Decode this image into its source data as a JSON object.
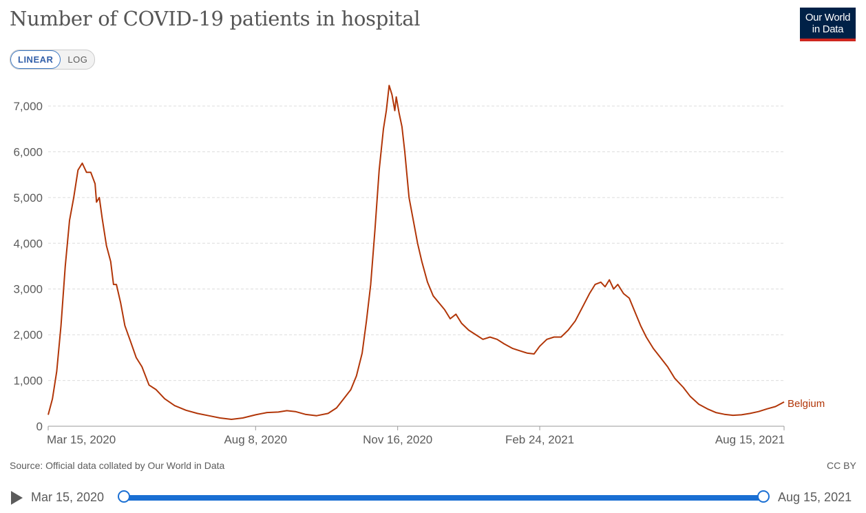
{
  "title": "Number of COVID-19 patients in hospital",
  "logo": {
    "line1": "Our World",
    "line2": "in Data"
  },
  "scale_toggle": {
    "linear_label": "LINEAR",
    "log_label": "LOG",
    "selected": "LINEAR"
  },
  "source_text": "Source: Official data collated by Our World in Data",
  "license_text": "CC BY",
  "timeline": {
    "start_label": "Mar 15, 2020",
    "end_label": "Aug 15, 2021"
  },
  "colors": {
    "series": "#b13507",
    "accent": "#1a6fd3",
    "logo_bg": "#002147",
    "logo_bar": "#ce261e"
  },
  "chart_data": {
    "type": "line",
    "title": "Number of COVID-19 patients in hospital",
    "xlabel": "",
    "ylabel": "",
    "x_range": [
      "2020-03-15",
      "2021-08-15"
    ],
    "ylim": [
      0,
      7000
    ],
    "y_ticks": [
      0,
      1000,
      2000,
      3000,
      4000,
      5000,
      6000,
      7000
    ],
    "y_tick_labels": [
      "0",
      "1,000",
      "2,000",
      "3,000",
      "4,000",
      "5,000",
      "6,000",
      "7,000"
    ],
    "x_ticks": [
      "2020-03-15",
      "2020-08-08",
      "2020-11-16",
      "2021-02-24",
      "2021-08-15"
    ],
    "x_tick_labels": [
      "Mar 15, 2020",
      "Aug 8, 2020",
      "Nov 16, 2020",
      "Feb 24, 2021",
      "Aug 15, 2021"
    ],
    "grid": "horizontal-dashed",
    "series": [
      {
        "name": "Belgium",
        "points": [
          [
            "2020-03-15",
            250
          ],
          [
            "2020-03-18",
            600
          ],
          [
            "2020-03-21",
            1200
          ],
          [
            "2020-03-24",
            2200
          ],
          [
            "2020-03-27",
            3500
          ],
          [
            "2020-03-30",
            4500
          ],
          [
            "2020-04-02",
            5000
          ],
          [
            "2020-04-05",
            5600
          ],
          [
            "2020-04-08",
            5750
          ],
          [
            "2020-04-11",
            5550
          ],
          [
            "2020-04-14",
            5550
          ],
          [
            "2020-04-17",
            5300
          ],
          [
            "2020-04-18",
            4900
          ],
          [
            "2020-04-20",
            5000
          ],
          [
            "2020-04-22",
            4550
          ],
          [
            "2020-04-25",
            3950
          ],
          [
            "2020-04-28",
            3600
          ],
          [
            "2020-04-30",
            3100
          ],
          [
            "2020-05-02",
            3100
          ],
          [
            "2020-05-05",
            2700
          ],
          [
            "2020-05-08",
            2200
          ],
          [
            "2020-05-12",
            1850
          ],
          [
            "2020-05-16",
            1500
          ],
          [
            "2020-05-20",
            1300
          ],
          [
            "2020-05-25",
            900
          ],
          [
            "2020-05-30",
            800
          ],
          [
            "2020-06-05",
            600
          ],
          [
            "2020-06-12",
            450
          ],
          [
            "2020-06-20",
            350
          ],
          [
            "2020-06-28",
            280
          ],
          [
            "2020-07-06",
            230
          ],
          [
            "2020-07-14",
            180
          ],
          [
            "2020-07-22",
            150
          ],
          [
            "2020-07-30",
            180
          ],
          [
            "2020-08-08",
            250
          ],
          [
            "2020-08-16",
            300
          ],
          [
            "2020-08-24",
            310
          ],
          [
            "2020-08-30",
            340
          ],
          [
            "2020-09-05",
            320
          ],
          [
            "2020-09-12",
            260
          ],
          [
            "2020-09-20",
            230
          ],
          [
            "2020-09-28",
            280
          ],
          [
            "2020-10-04",
            400
          ],
          [
            "2020-10-09",
            600
          ],
          [
            "2020-10-14",
            800
          ],
          [
            "2020-10-18",
            1100
          ],
          [
            "2020-10-22",
            1600
          ],
          [
            "2020-10-25",
            2300
          ],
          [
            "2020-10-28",
            3100
          ],
          [
            "2020-10-31",
            4300
          ],
          [
            "2020-11-03",
            5600
          ],
          [
            "2020-11-06",
            6500
          ],
          [
            "2020-11-08",
            6900
          ],
          [
            "2020-11-10",
            7450
          ],
          [
            "2020-11-12",
            7250
          ],
          [
            "2020-11-14",
            6900
          ],
          [
            "2020-11-15",
            7200
          ],
          [
            "2020-11-17",
            6850
          ],
          [
            "2020-11-19",
            6550
          ],
          [
            "2020-11-21",
            6000
          ],
          [
            "2020-11-24",
            5000
          ],
          [
            "2020-11-27",
            4500
          ],
          [
            "2020-11-30",
            4000
          ],
          [
            "2020-12-03",
            3600
          ],
          [
            "2020-12-07",
            3150
          ],
          [
            "2020-12-11",
            2850
          ],
          [
            "2020-12-15",
            2700
          ],
          [
            "2020-12-19",
            2550
          ],
          [
            "2020-12-23",
            2350
          ],
          [
            "2020-12-27",
            2450
          ],
          [
            "2020-12-31",
            2250
          ],
          [
            "2021-01-05",
            2100
          ],
          [
            "2021-01-10",
            2000
          ],
          [
            "2021-01-15",
            1900
          ],
          [
            "2021-01-20",
            1950
          ],
          [
            "2021-01-25",
            1900
          ],
          [
            "2021-01-30",
            1800
          ],
          [
            "2021-02-05",
            1700
          ],
          [
            "2021-02-10",
            1650
          ],
          [
            "2021-02-15",
            1600
          ],
          [
            "2021-02-20",
            1580
          ],
          [
            "2021-02-24",
            1750
          ],
          [
            "2021-03-01",
            1900
          ],
          [
            "2021-03-06",
            1950
          ],
          [
            "2021-03-11",
            1950
          ],
          [
            "2021-03-16",
            2100
          ],
          [
            "2021-03-21",
            2300
          ],
          [
            "2021-03-26",
            2600
          ],
          [
            "2021-03-31",
            2900
          ],
          [
            "2021-04-04",
            3100
          ],
          [
            "2021-04-08",
            3150
          ],
          [
            "2021-04-11",
            3050
          ],
          [
            "2021-04-14",
            3200
          ],
          [
            "2021-04-17",
            3000
          ],
          [
            "2021-04-20",
            3100
          ],
          [
            "2021-04-24",
            2900
          ],
          [
            "2021-04-28",
            2800
          ],
          [
            "2021-05-02",
            2500
          ],
          [
            "2021-05-06",
            2200
          ],
          [
            "2021-05-10",
            1950
          ],
          [
            "2021-05-15",
            1700
          ],
          [
            "2021-05-20",
            1500
          ],
          [
            "2021-05-25",
            1300
          ],
          [
            "2021-05-30",
            1050
          ],
          [
            "2021-06-05",
            850
          ],
          [
            "2021-06-10",
            650
          ],
          [
            "2021-06-16",
            480
          ],
          [
            "2021-06-22",
            380
          ],
          [
            "2021-06-28",
            300
          ],
          [
            "2021-07-04",
            260
          ],
          [
            "2021-07-10",
            240
          ],
          [
            "2021-07-16",
            250
          ],
          [
            "2021-07-22",
            280
          ],
          [
            "2021-07-28",
            320
          ],
          [
            "2021-08-03",
            380
          ],
          [
            "2021-08-09",
            430
          ],
          [
            "2021-08-15",
            530
          ]
        ]
      }
    ]
  }
}
